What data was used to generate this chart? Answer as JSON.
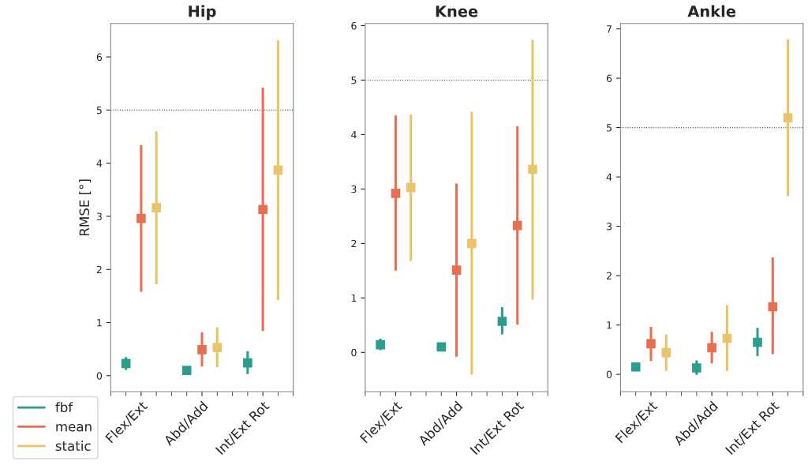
{
  "chart_data": [
    {
      "type": "scatter",
      "title": "Hip",
      "ylabel": "RMSE [°]",
      "categories": [
        "Flex/Ext",
        "Abd/Add",
        "Int/Ext Rot"
      ],
      "ylim": [
        -0.3,
        6.63
      ],
      "yticks": [
        0,
        1,
        2,
        3,
        4,
        5,
        6
      ],
      "marker": "square",
      "legend": "bottom left",
      "grid": false,
      "ref_lines": [
        {
          "axis": "y",
          "value": 5,
          "color": "#555555",
          "line_style": "dotted"
        }
      ],
      "series": [
        {
          "name": "fbf",
          "color": "#2a9d8f",
          "values": [
            0.23,
            0.1,
            0.24
          ],
          "errors": [
            [
              0.11,
              0.35
            ],
            null,
            [
              0.03,
              0.46
            ]
          ]
        },
        {
          "name": "mean",
          "color": "#e76f51",
          "values": [
            2.96,
            0.49,
            3.13
          ],
          "errors": [
            [
              1.58,
              4.34
            ],
            [
              0.17,
              0.82
            ],
            [
              0.84,
              5.42
            ]
          ]
        },
        {
          "name": "static",
          "color": "#e9c46a",
          "values": [
            3.16,
            0.53,
            3.87
          ],
          "errors": [
            [
              1.72,
              4.6
            ],
            [
              0.16,
              0.91
            ],
            [
              1.42,
              6.31
            ]
          ]
        }
      ]
    },
    {
      "type": "scatter",
      "title": "Knee",
      "categories": [
        "Flex/Ext",
        "Abd/Add",
        "Int/Ext Rot"
      ],
      "ylim": [
        -0.72,
        6.04
      ],
      "yticks": [
        0,
        1,
        2,
        3,
        4,
        5,
        6
      ],
      "marker": "square",
      "grid": false,
      "ref_lines": [
        {
          "axis": "y",
          "value": 5,
          "color": "#555555",
          "line_style": "dotted"
        }
      ],
      "series": [
        {
          "color": "#2a9d8f",
          "values": [
            0.14,
            0.1,
            0.57
          ],
          "errors": [
            [
              0.04,
              0.25
            ],
            null,
            [
              0.33,
              0.83
            ]
          ]
        },
        {
          "color": "#e76f51",
          "values": [
            2.92,
            1.51,
            2.33
          ],
          "errors": [
            [
              1.5,
              4.35
            ],
            [
              -0.08,
              3.1
            ],
            [
              0.51,
              4.15
            ]
          ]
        },
        {
          "color": "#e9c46a",
          "values": [
            3.03,
            2.0,
            3.36
          ],
          "errors": [
            [
              1.68,
              4.37
            ],
            [
              -0.41,
              4.42
            ],
            [
              0.97,
              5.74
            ]
          ]
        }
      ]
    },
    {
      "type": "scatter",
      "title": "Ankle",
      "categories": [
        "Flex/Ext",
        "Abd/Add",
        "Int/Ext Rot"
      ],
      "ylim": [
        -0.35,
        7.11
      ],
      "yticks": [
        0,
        1,
        2,
        3,
        4,
        5,
        6,
        7
      ],
      "marker": "square",
      "grid": false,
      "ref_lines": [
        {
          "axis": "y",
          "value": 5,
          "color": "#555555",
          "line_style": "dotted"
        }
      ],
      "series": [
        {
          "color": "#2a9d8f",
          "values": [
            0.15,
            0.13,
            0.65
          ],
          "errors": [
            [
              0.07,
              0.23
            ],
            [
              -0.01,
              0.28
            ],
            [
              0.37,
              0.94
            ]
          ]
        },
        {
          "color": "#e76f51",
          "values": [
            0.62,
            0.54,
            1.37
          ],
          "errors": [
            [
              0.27,
              0.96
            ],
            [
              0.22,
              0.86
            ],
            [
              0.41,
              2.37
            ]
          ]
        },
        {
          "color": "#e9c46a",
          "values": [
            0.44,
            0.73,
            5.2
          ],
          "errors": [
            [
              0.07,
              0.81
            ],
            [
              0.07,
              1.4
            ],
            [
              3.61,
              6.79
            ]
          ]
        }
      ]
    }
  ]
}
